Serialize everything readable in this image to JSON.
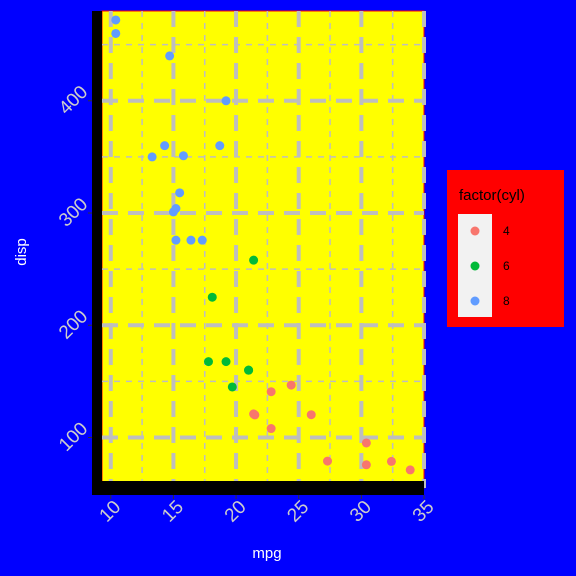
{
  "colors": {
    "page_background": "#0000ff",
    "panel_background": "#ffff00",
    "panel_border": "#ff0000",
    "axis_line": "#000000",
    "grid_line": "#bebebe",
    "legend_background": "#ff0000",
    "legend_key_background": "#f2f2f2"
  },
  "chart_data": {
    "type": "scatter",
    "xlabel": "mpg",
    "ylabel": "disp",
    "xlim": [
      9.3,
      35.0
    ],
    "ylim": [
      55,
      480
    ],
    "xticks": [
      10,
      15,
      20,
      25,
      30,
      35
    ],
    "yticks": [
      100,
      200,
      300,
      400
    ],
    "xtick_labels": [
      "10",
      "15",
      "20",
      "25",
      "30",
      "35"
    ],
    "ytick_labels": [
      "100",
      "200",
      "300",
      "400"
    ],
    "grid": true,
    "legend": {
      "title": "factor(cyl)",
      "position": "right",
      "entries": [
        {
          "label": "4",
          "color": "#F8766D"
        },
        {
          "label": "6",
          "color": "#00BA38"
        },
        {
          "label": "8",
          "color": "#619CFF"
        }
      ]
    },
    "series": [
      {
        "name": "4",
        "color": "#F8766D",
        "points": [
          [
            22.8,
            108
          ],
          [
            24.4,
            146.7
          ],
          [
            22.8,
            140.8
          ],
          [
            32.4,
            78.7
          ],
          [
            30.4,
            75.7
          ],
          [
            33.9,
            71.1
          ],
          [
            21.5,
            120.1
          ],
          [
            27.3,
            79
          ],
          [
            26.0,
            120.3
          ],
          [
            30.4,
            95.1
          ],
          [
            21.4,
            121
          ]
        ]
      },
      {
        "name": "6",
        "color": "#00BA38",
        "points": [
          [
            21.0,
            160
          ],
          [
            21.0,
            160
          ],
          [
            21.4,
            258
          ],
          [
            18.1,
            225
          ],
          [
            19.2,
            167.6
          ],
          [
            17.8,
            167.6
          ],
          [
            19.7,
            145
          ]
        ]
      },
      {
        "name": "8",
        "color": "#619CFF",
        "points": [
          [
            18.7,
            360
          ],
          [
            14.3,
            360
          ],
          [
            16.4,
            275.8
          ],
          [
            17.3,
            275.8
          ],
          [
            15.2,
            275.8
          ],
          [
            10.4,
            472
          ],
          [
            10.4,
            460
          ],
          [
            14.7,
            440
          ],
          [
            15.5,
            318
          ],
          [
            15.2,
            304
          ],
          [
            13.3,
            350
          ],
          [
            19.2,
            400
          ],
          [
            15.8,
            351
          ],
          [
            15.0,
            301
          ]
        ]
      }
    ]
  }
}
